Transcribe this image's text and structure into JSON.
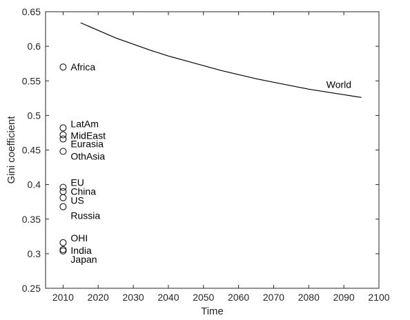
{
  "chart_data": {
    "type": "scatter",
    "xlabel": "Time",
    "ylabel": "Gini coefficient",
    "xlim": [
      2005,
      2100
    ],
    "ylim": [
      0.25,
      0.65
    ],
    "xticks": [
      2010,
      2020,
      2030,
      2040,
      2050,
      2060,
      2070,
      2080,
      2090,
      2100
    ],
    "yticks": [
      0.25,
      0.3,
      0.35,
      0.4,
      0.45,
      0.5,
      0.55,
      0.6,
      0.65
    ],
    "grid": false,
    "legend": "none",
    "points": [
      {
        "label": "Africa",
        "x": 2010,
        "y": 0.57
      },
      {
        "label": "LatAm",
        "x": 2010,
        "y": 0.482
      },
      {
        "label": "MidEast",
        "x": 2010,
        "y": 0.472
      },
      {
        "label": "Eurasia",
        "x": 2010,
        "y": 0.466
      },
      {
        "label": "OthAsia",
        "x": 2010,
        "y": 0.448
      },
      {
        "label": "EU",
        "x": 2010,
        "y": 0.396
      },
      {
        "label": "China",
        "x": 2010,
        "y": 0.39
      },
      {
        "label": "US",
        "x": 2010,
        "y": 0.381
      },
      {
        "label": "Russia",
        "x": 2010,
        "y": 0.368
      },
      {
        "label": "OHI",
        "x": 2010,
        "y": 0.316
      },
      {
        "label": "India",
        "x": 2010,
        "y": 0.306
      },
      {
        "label": "Japan",
        "x": 2010,
        "y": 0.304
      }
    ],
    "series": [
      {
        "name": "World",
        "x": [
          2015,
          2020,
          2025,
          2030,
          2035,
          2040,
          2045,
          2050,
          2055,
          2060,
          2065,
          2070,
          2075,
          2080,
          2085,
          2090,
          2095
        ],
        "values": [
          0.634,
          0.623,
          0.612,
          0.603,
          0.594,
          0.586,
          0.579,
          0.572,
          0.565,
          0.559,
          0.553,
          0.548,
          0.543,
          0.538,
          0.534,
          0.53,
          0.526
        ]
      }
    ],
    "colors": {
      "line": "#000000",
      "marker": "#000000",
      "axis": "#262626"
    }
  }
}
